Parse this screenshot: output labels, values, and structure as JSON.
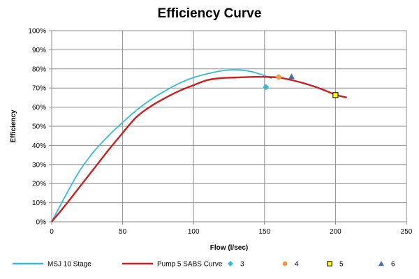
{
  "chart_data": {
    "type": "line",
    "title": "Efficiency Curve",
    "xlabel": "Flow (l/sec)",
    "ylabel": "Efficiency",
    "xlim": [
      0,
      250
    ],
    "ylim": [
      0,
      1
    ],
    "x_ticks": [
      0,
      50,
      100,
      150,
      200,
      250
    ],
    "x_tick_labels": [
      "0",
      "50",
      "100",
      "150",
      "200",
      "250"
    ],
    "y_ticks": [
      0,
      0.1,
      0.2,
      0.3,
      0.4,
      0.5,
      0.6,
      0.7,
      0.8,
      0.9,
      1.0
    ],
    "y_tick_labels": [
      "0%",
      "10%",
      "20%",
      "30%",
      "40%",
      "50%",
      "60%",
      "70%",
      "80%",
      "90%",
      "100%"
    ],
    "grid": true,
    "legend_position": "bottom",
    "series": [
      {
        "name": "MSJ 10 Stage",
        "kind": "line",
        "color": "#33bbd9",
        "x": [
          0,
          10,
          20,
          30,
          40,
          50,
          60,
          70,
          80,
          90,
          100,
          110,
          120,
          130,
          140,
          150,
          155
        ],
        "y": [
          0,
          0.14,
          0.27,
          0.37,
          0.45,
          0.52,
          0.585,
          0.64,
          0.685,
          0.725,
          0.755,
          0.775,
          0.79,
          0.795,
          0.787,
          0.765,
          0.75
        ]
      },
      {
        "name": "Pump 5 SABS Curve",
        "kind": "line",
        "color": "#cc1e1e",
        "x": [
          0,
          10,
          20,
          30,
          40,
          50,
          60,
          70,
          80,
          90,
          100,
          110,
          120,
          130,
          140,
          150,
          160,
          170,
          180,
          190,
          200,
          208
        ],
        "y": [
          0,
          0.09,
          0.185,
          0.28,
          0.375,
          0.465,
          0.55,
          0.605,
          0.648,
          0.685,
          0.715,
          0.742,
          0.752,
          0.755,
          0.758,
          0.758,
          0.755,
          0.74,
          0.72,
          0.695,
          0.665,
          0.65
        ]
      },
      {
        "name": "3",
        "kind": "marker",
        "marker": "diamond",
        "color": "#33bbd9",
        "x": [
          151
        ],
        "y": [
          0.705
        ]
      },
      {
        "name": "4",
        "kind": "marker",
        "marker": "circle",
        "color": "#f59a4a",
        "x": [
          160
        ],
        "y": [
          0.757
        ]
      },
      {
        "name": "5",
        "kind": "marker",
        "marker": "square",
        "color": "#ffff00",
        "stroke": "#000000",
        "x": [
          200
        ],
        "y": [
          0.663
        ]
      },
      {
        "name": "6",
        "kind": "marker",
        "marker": "triangle",
        "color": "#4a6fa8",
        "x": [
          169
        ],
        "y": [
          0.76
        ]
      }
    ]
  }
}
